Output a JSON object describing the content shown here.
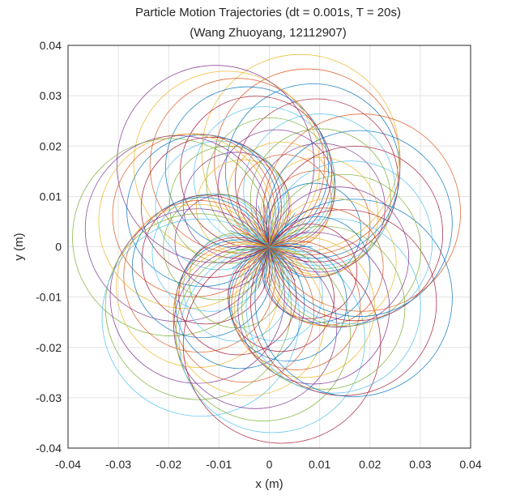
{
  "chart_data": {
    "type": "line",
    "title": "Particle Motion Trajectories (dt = 0.001s, T = 20s)",
    "subtitle": "(Wang Zhuoyang, 12112907)",
    "xlabel": "x (m)",
    "ylabel": "y (m)",
    "xlim": [
      -0.04,
      0.04
    ],
    "ylim": [
      -0.04,
      0.04
    ],
    "xticks": [
      -0.04,
      -0.03,
      -0.02,
      -0.01,
      0,
      0.01,
      0.02,
      0.03,
      0.04
    ],
    "yticks": [
      -0.04,
      -0.03,
      -0.02,
      -0.01,
      0,
      0.01,
      0.02,
      0.03,
      0.04
    ],
    "xtick_labels": [
      "-0.04",
      "-0.03",
      "-0.02",
      "-0.01",
      "0",
      "0.01",
      "0.02",
      "0.03",
      "0.04"
    ],
    "ytick_labels": [
      "-0.04",
      "-0.03",
      "-0.02",
      "-0.01",
      "0",
      "0.01",
      "0.02",
      "0.03",
      "0.04"
    ],
    "grid": true,
    "aspect": "equal",
    "trajectory_model": {
      "shape": "circle orbits through the origin",
      "orbit_radius_min": 0.0094,
      "orbit_radius_max": 0.0196,
      "orbit_center_distance_min": 0.0094,
      "orbit_center_distance_max": 0.0196
    },
    "series_colors": [
      "#0072BD",
      "#D95319",
      "#EDB120",
      "#7E2F8E",
      "#77AC30",
      "#4DBEEE",
      "#A2142F"
    ]
  }
}
